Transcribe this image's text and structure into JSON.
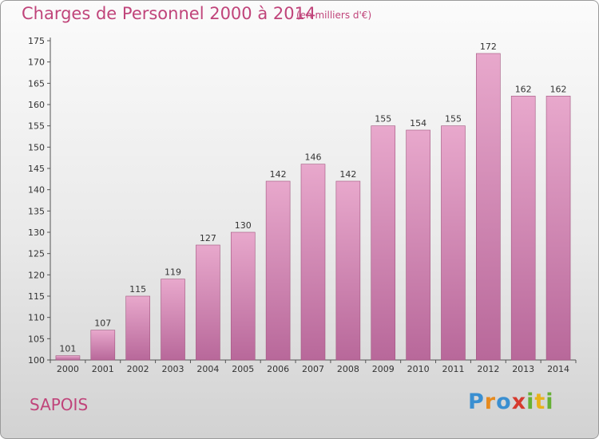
{
  "header": {
    "title": "Charges de Personnel 2000 à 2014",
    "subtitle": "(en milliers d'€)"
  },
  "footer": {
    "commune": "SAPOIS",
    "logo": {
      "text": "Proxiti",
      "letter_colors": [
        "#3a8fd1",
        "#e68a1e",
        "#3a8fd1",
        "#d63a2e",
        "#66b035",
        "#e8b21a",
        "#66b035"
      ]
    }
  },
  "colors": {
    "accent": "#c0447a",
    "bar_top": "#e8a8cc",
    "bar_bottom": "#b8689a",
    "bar_edge": "#a2557f"
  },
  "chart_data": {
    "type": "bar",
    "categories": [
      "2000",
      "2001",
      "2002",
      "2003",
      "2004",
      "2005",
      "2006",
      "2007",
      "2008",
      "2009",
      "2010",
      "2011",
      "2012",
      "2013",
      "2014"
    ],
    "values": [
      101,
      107,
      115,
      119,
      127,
      130,
      142,
      146,
      142,
      155,
      154,
      155,
      172,
      162,
      162
    ],
    "title": "Charges de Personnel 2000 à 2014",
    "ylim": [
      100,
      175
    ],
    "yticks": [
      100,
      105,
      110,
      115,
      120,
      125,
      130,
      135,
      140,
      145,
      150,
      155,
      160,
      165,
      170,
      175
    ],
    "grid": false,
    "show_value_labels": true
  }
}
